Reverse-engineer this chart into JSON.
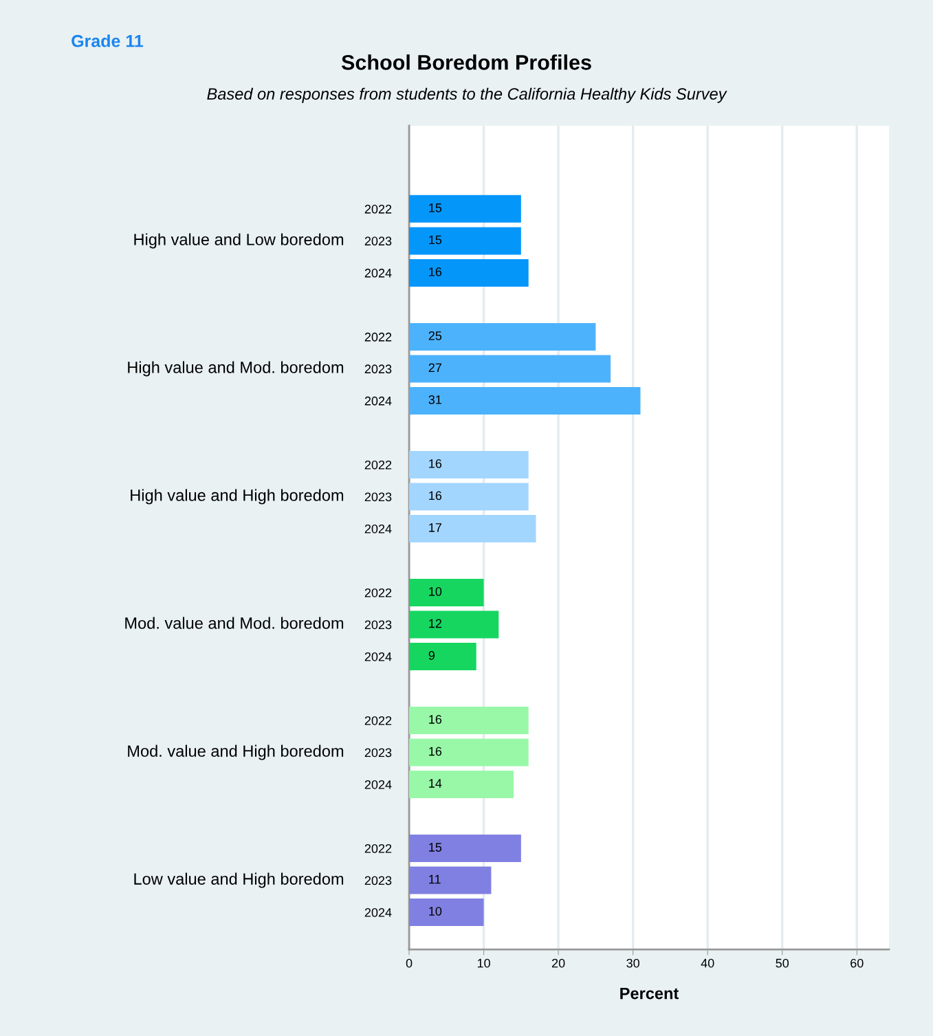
{
  "chart_data": {
    "type": "bar",
    "orientation": "horizontal",
    "title": "School Boredom Profiles",
    "subtitle": "Based on responses from students to the California Healthy Kids Survey",
    "xlabel": "Percent",
    "annotations": [
      "Grade 11",
      "High value and Low boredom",
      "High value and Mod. boredom",
      "High value and High boredom",
      "Mod. value and Mod. boredom",
      "Mod. value and High boredom",
      "Low value and High boredom"
    ],
    "categories": [
      "2022",
      "2023",
      "2024",
      null,
      "2022",
      "2023",
      "2024",
      null,
      "2022",
      "2023",
      "2024",
      null,
      "2022",
      "2023",
      "2024",
      null,
      "2022",
      "2023",
      "2024",
      null,
      "2022",
      "2023",
      "2024"
    ],
    "values": [
      15,
      15,
      16,
      null,
      25,
      27,
      31,
      null,
      16,
      16,
      17,
      null,
      10,
      12,
      9,
      null,
      16,
      16,
      14,
      null,
      15,
      11,
      10
    ],
    "colors": [
      "#0596fa",
      "#0596fa",
      "#0596fa",
      null,
      "#4db2fc",
      "#4db2fc",
      "#4db2fc",
      null,
      "#a3d6fe",
      "#a3d6fe",
      "#a3d6fe",
      null,
      "#16d660",
      "#16d660",
      "#16d660",
      null,
      "#98f8a8",
      "#98f8a8",
      "#98f8a8",
      null,
      "#8080e2",
      "#8080e2",
      "#8080e2"
    ],
    "xlim": [
      0,
      64.3
    ],
    "xticks": [
      0,
      10,
      20,
      30,
      40,
      50,
      60
    ],
    "grid": "x",
    "data_labels": true
  }
}
